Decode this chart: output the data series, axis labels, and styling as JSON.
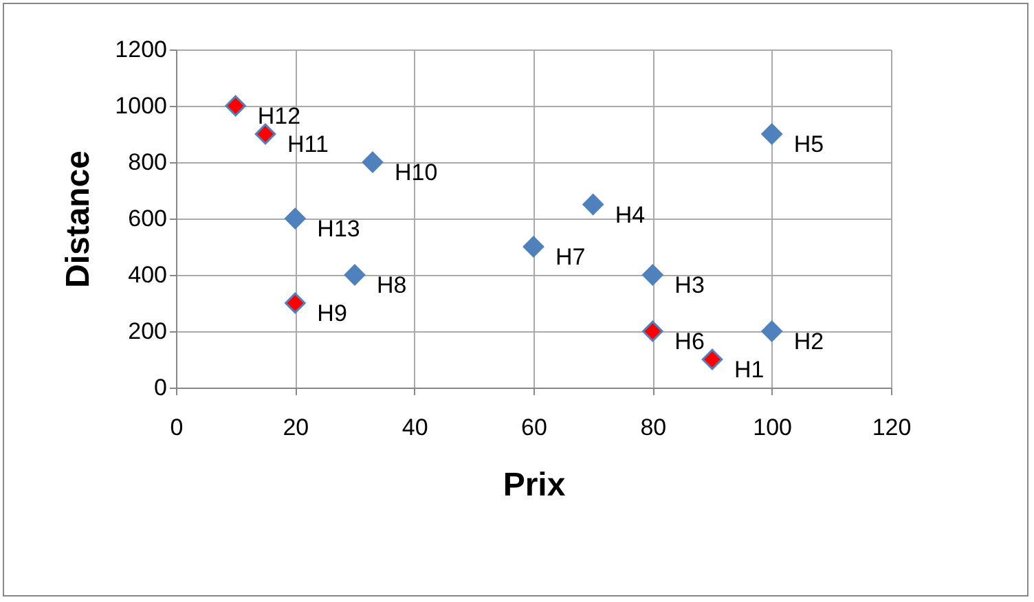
{
  "chart_data": {
    "type": "scatter",
    "xlabel": "Prix",
    "ylabel": "Distance",
    "marker": "diamond",
    "grid": true,
    "xlim": [
      0,
      120
    ],
    "xticks": [
      0,
      20,
      40,
      60,
      80,
      100,
      120
    ],
    "ylim": [
      0,
      1200
    ],
    "yticks": [
      0,
      200,
      400,
      600,
      800,
      1000,
      1200
    ],
    "series": [
      {
        "color": "#4f81bd",
        "x": [
          100,
          80,
          70,
          100,
          60,
          30,
          33,
          20
        ],
        "values": [
          200,
          400,
          650,
          900,
          500,
          400,
          800,
          600
        ]
      },
      {
        "color": "#ff0000",
        "x": [
          90,
          80,
          20,
          15,
          10
        ],
        "values": [
          100,
          200,
          300,
          900,
          1000
        ]
      }
    ],
    "annotations": [
      {
        "text": "H1",
        "x": 90,
        "y": 100
      },
      {
        "text": "H2",
        "x": 100,
        "y": 200
      },
      {
        "text": "H3",
        "x": 80,
        "y": 400
      },
      {
        "text": "H4",
        "x": 70,
        "y": 650
      },
      {
        "text": "H5",
        "x": 100,
        "y": 900
      },
      {
        "text": "H6",
        "x": 80,
        "y": 200
      },
      {
        "text": "H7",
        "x": 60,
        "y": 500
      },
      {
        "text": "H8",
        "x": 30,
        "y": 400
      },
      {
        "text": "H9",
        "x": 20,
        "y": 300
      },
      {
        "text": "H10",
        "x": 33,
        "y": 800
      },
      {
        "text": "H11",
        "x": 15,
        "y": 900
      },
      {
        "text": "H12",
        "x": 10,
        "y": 1000
      },
      {
        "text": "H13",
        "x": 20,
        "y": 600
      }
    ]
  }
}
